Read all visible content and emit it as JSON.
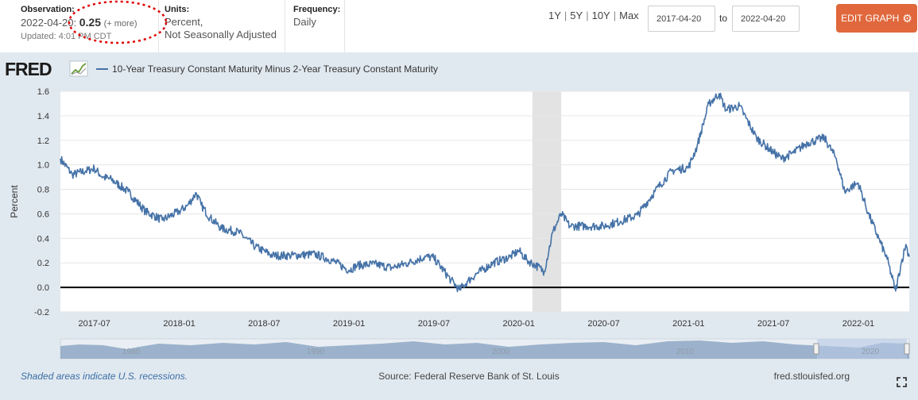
{
  "header": {
    "observation": {
      "label": "Observation:",
      "date": "2022-04-20:",
      "value": "0.25",
      "more": "(+ more)",
      "updated": "Updated: 4:01 PM CDT"
    },
    "units": {
      "label": "Units:",
      "line1": "Percent,",
      "line2": "Not Seasonally Adjusted"
    },
    "frequency": {
      "label": "Frequency:",
      "value": "Daily"
    },
    "range_links": [
      "1Y",
      "5Y",
      "10Y",
      "Max"
    ],
    "date_from": "2017-04-20",
    "to_label": "to",
    "date_to": "2022-04-20",
    "edit_button": "EDIT GRAPH"
  },
  "colors": {
    "series": "#4572a7",
    "recession": "#e3e3e3",
    "panel": "#e1e9f0",
    "edit_button": "#e0683c",
    "annotation": "#e00000"
  },
  "logo": {
    "text": "FRED"
  },
  "chart_data": {
    "type": "line",
    "title": "",
    "legend": [
      "10-Year Treasury Constant Maturity Minus 2-Year Treasury Constant Maturity"
    ],
    "xlabel": "",
    "ylabel": "Percent",
    "x_start": 2017.3,
    "x_end": 2022.3,
    "ylim": [
      -0.2,
      1.6
    ],
    "yticks": [
      1.6,
      1.4,
      1.2,
      1.0,
      0.8,
      0.6,
      0.4,
      0.2,
      0.0,
      -0.2
    ],
    "ytick_labels": [
      "1.6",
      "1.4",
      "1.2",
      "1.0",
      "0.8",
      "0.6",
      "0.4",
      "0.2",
      "0.0",
      "-0.2"
    ],
    "xticks": [
      2017.5,
      2018.0,
      2018.5,
      2019.0,
      2019.5,
      2020.0,
      2020.5,
      2021.0,
      2021.5,
      2022.0
    ],
    "xtick_labels": [
      "2017-07",
      "2018-01",
      "2018-07",
      "2019-01",
      "2019-07",
      "2020-01",
      "2020-07",
      "2021-01",
      "2021-07",
      "2022-01"
    ],
    "recession": [
      2020.08,
      2020.25
    ],
    "series": [
      {
        "name": "10-Year Treasury Constant Maturity Minus 2-Year Treasury Constant Maturity",
        "x": [
          2017.3,
          2017.37,
          2017.45,
          2017.5,
          2017.55,
          2017.6,
          2017.7,
          2017.8,
          2017.9,
          2018.0,
          2018.05,
          2018.1,
          2018.13,
          2018.18,
          2018.25,
          2018.35,
          2018.45,
          2018.55,
          2018.65,
          2018.8,
          2018.9,
          2019.0,
          2019.05,
          2019.15,
          2019.25,
          2019.35,
          2019.45,
          2019.5,
          2019.6,
          2019.65,
          2019.7,
          2019.75,
          2019.85,
          2019.95,
          2020.0,
          2020.05,
          2020.1,
          2020.15,
          2020.2,
          2020.25,
          2020.3,
          2020.4,
          2020.5,
          2020.6,
          2020.7,
          2020.8,
          2020.9,
          2021.0,
          2021.05,
          2021.12,
          2021.18,
          2021.22,
          2021.3,
          2021.4,
          2021.5,
          2021.55,
          2021.62,
          2021.7,
          2021.75,
          2021.8,
          2021.87,
          2021.92,
          2021.97,
          2022.0,
          2022.06,
          2022.12,
          2022.17,
          2022.22,
          2022.25,
          2022.28,
          2022.3
        ],
        "values": [
          1.05,
          0.92,
          0.95,
          0.97,
          0.9,
          0.88,
          0.78,
          0.62,
          0.55,
          0.62,
          0.67,
          0.77,
          0.67,
          0.57,
          0.48,
          0.45,
          0.33,
          0.26,
          0.26,
          0.27,
          0.22,
          0.14,
          0.18,
          0.19,
          0.16,
          0.2,
          0.25,
          0.24,
          0.06,
          -0.02,
          0.05,
          0.11,
          0.2,
          0.25,
          0.3,
          0.22,
          0.18,
          0.13,
          0.45,
          0.6,
          0.5,
          0.5,
          0.5,
          0.54,
          0.59,
          0.78,
          0.95,
          0.98,
          1.15,
          1.5,
          1.58,
          1.45,
          1.48,
          1.22,
          1.1,
          1.05,
          1.1,
          1.18,
          1.2,
          1.22,
          1.05,
          0.78,
          0.83,
          0.85,
          0.6,
          0.4,
          0.23,
          -0.03,
          0.18,
          0.35,
          0.25
        ]
      }
    ]
  },
  "footer": {
    "recession_note": "Shaded areas indicate U.S. recessions.",
    "source": "Source: Federal Reserve Bank of St. Louis",
    "site": "fred.stlouisfed.org"
  },
  "navigator": {
    "tick_labels": [
      "1980",
      "1990",
      "2000",
      "2010",
      "2020"
    ]
  }
}
